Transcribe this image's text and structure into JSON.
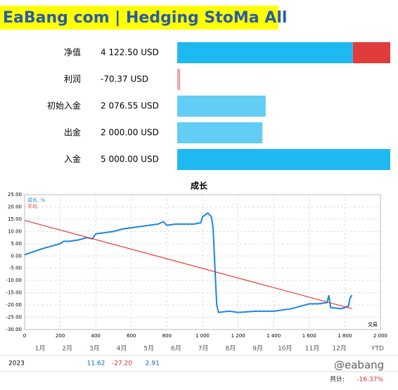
{
  "header": {
    "title": "EaBang com | Hedging StoMa All"
  },
  "summary": {
    "rows": [
      {
        "label": "净值",
        "value": 4122.5,
        "value_label": "4 122.50 USD",
        "color": "#1fb9f1"
      },
      {
        "label": "利润",
        "value": -70.37,
        "value_label": "-70.37 USD",
        "color": "#f0a3aa"
      },
      {
        "label": "初始入金",
        "value": 2076.55,
        "value_label": "2 076.55 USD",
        "color": "#62cdf5"
      },
      {
        "label": "出金",
        "value": 2000,
        "value_label": "2 000.00 USD",
        "color": "#62cdf5"
      },
      {
        "label": "入金",
        "value": 5000,
        "value_label": "5 000.00 USD",
        "color": "#1fb9f1"
      }
    ],
    "remainder_color": "#e03c3c"
  },
  "chart_data": {
    "type": "line",
    "title": "成长",
    "x_label": "交易",
    "xlim": [
      0,
      2000
    ],
    "xticks": [
      0,
      200,
      400,
      600,
      800,
      {
        "value": 1000,
        "label": "1 000"
      },
      {
        "value": 1200,
        "label": "1 200"
      },
      {
        "value": 1400,
        "label": "1 400"
      },
      {
        "value": 1600,
        "label": "1 600"
      },
      {
        "value": 1800,
        "label": "1 800"
      },
      {
        "value": 2000,
        "label": "2 000"
      }
    ],
    "ylim": [
      -30,
      25
    ],
    "yticks": [
      {
        "value": 25,
        "label": "25.00"
      },
      {
        "value": 20,
        "label": "20.00"
      },
      {
        "value": 15,
        "label": "15.00"
      },
      {
        "value": 10,
        "label": "10.00"
      },
      {
        "value": 5,
        "label": "5.00"
      },
      {
        "value": 0,
        "label": "0.00"
      },
      {
        "value": -5,
        "label": "-5.00"
      },
      {
        "value": -10,
        "label": "-10.00"
      },
      {
        "value": -15,
        "label": "-15.00"
      },
      {
        "value": -20,
        "label": "-20.00"
      },
      {
        "value": -25,
        "label": "-25.00"
      },
      {
        "value": -30,
        "label": "-30.00"
      }
    ],
    "grid": true,
    "series": [
      {
        "name": "成长, %",
        "color": "#1a86e0",
        "x": [
          0,
          20,
          60,
          100,
          150,
          200,
          220,
          250,
          300,
          350,
          380,
          400,
          450,
          500,
          550,
          600,
          650,
          700,
          750,
          780,
          800,
          850,
          900,
          950,
          990,
          1000,
          1030,
          1050,
          1060,
          1070,
          1080,
          1090,
          1150,
          1200,
          1300,
          1400,
          1500,
          1600,
          1650,
          1700,
          1710,
          1720,
          1780,
          1820,
          1830,
          1840
        ],
        "values": [
          0.5,
          1,
          2,
          3,
          4,
          5,
          6,
          6,
          6.5,
          7.5,
          7,
          9,
          9.5,
          10,
          11,
          11.5,
          12,
          12.5,
          13,
          14,
          12.5,
          13,
          13,
          13,
          13.5,
          16,
          17.5,
          16,
          11,
          -5,
          -20,
          -23,
          -22.5,
          -23,
          -22.5,
          -22.5,
          -21.5,
          -19.5,
          -19.5,
          -19,
          -16,
          -21,
          -21.5,
          -20.5,
          -17,
          -16
        ]
      },
      {
        "name": "平均",
        "color": "#e53935",
        "x": [
          0,
          1840
        ],
        "values": [
          14.5,
          -21.5
        ]
      }
    ]
  },
  "monthly": {
    "months": [
      "1月",
      "2月",
      "3月",
      "4月",
      "5月",
      "6月",
      "7月",
      "8月",
      "9月",
      "10月",
      "11月",
      "12月"
    ],
    "ytd_header": "YTD",
    "year": "2023",
    "values": [
      null,
      null,
      "11.62",
      "-27.20",
      "2.91",
      null,
      null,
      null,
      null,
      null,
      null,
      null
    ],
    "total_label": "共计:",
    "total": "-16.37%"
  },
  "watermark": "@eabang"
}
